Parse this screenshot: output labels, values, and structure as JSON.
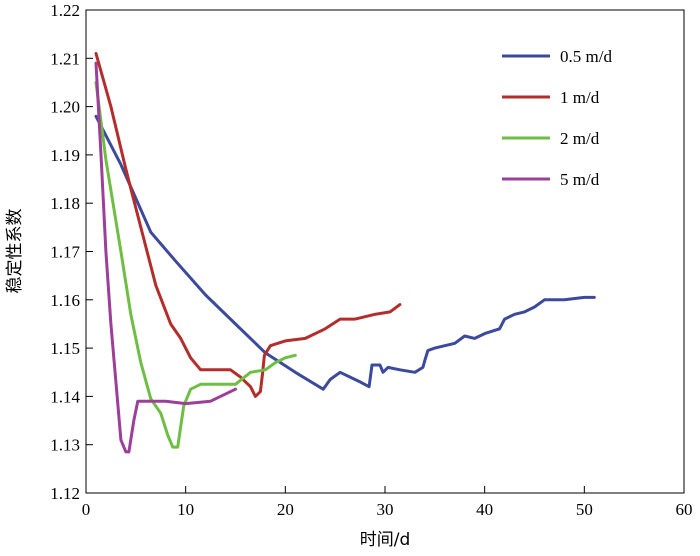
{
  "chart_data": {
    "type": "line",
    "title": "",
    "xlabel": "时间/d",
    "ylabel": "稳定性系数",
    "xlim": [
      0,
      60
    ],
    "ylim": [
      1.12,
      1.22
    ],
    "xticks": [
      0,
      10,
      20,
      30,
      40,
      50,
      60
    ],
    "yticks": [
      1.12,
      1.13,
      1.14,
      1.15,
      1.16,
      1.17,
      1.18,
      1.19,
      1.2,
      1.21,
      1.22
    ],
    "x_tick_labels": [
      "0",
      "10",
      "20",
      "30",
      "40",
      "50",
      "60"
    ],
    "y_tick_labels": [
      "1.12",
      "1.13",
      "1.14",
      "1.15",
      "1.16",
      "1.17",
      "1.18",
      "1.19",
      "1.20",
      "1.21",
      "1.22"
    ],
    "grid": false,
    "legend_position": "top-right",
    "series": [
      {
        "name": "0.5 m/d",
        "color": "#3b4a9c",
        "x": [
          1.0,
          3.5,
          6.5,
          9.0,
          12.0,
          15.0,
          18.0,
          21.0,
          23.8,
          24.5,
          25.5,
          26.5,
          27.5,
          28.4,
          28.7,
          29.2,
          29.5,
          29.8,
          30.3,
          31.5,
          33.0,
          33.8,
          34.0,
          34.3,
          35.0,
          37.0,
          38.0,
          39.0,
          40.0,
          41.5,
          42.0,
          43.0,
          44.0,
          45.0,
          46.0,
          48.0,
          50.0,
          51.0
        ],
        "y": [
          1.198,
          1.188,
          1.174,
          1.168,
          1.161,
          1.155,
          1.149,
          1.145,
          1.1415,
          1.1435,
          1.145,
          1.144,
          1.143,
          1.142,
          1.1465,
          1.1465,
          1.1465,
          1.145,
          1.146,
          1.1455,
          1.145,
          1.146,
          1.1475,
          1.1495,
          1.15,
          1.151,
          1.1525,
          1.152,
          1.153,
          1.154,
          1.156,
          1.157,
          1.1575,
          1.1585,
          1.16,
          1.16,
          1.1605,
          1.1605
        ]
      },
      {
        "name": "1 m/d",
        "color": "#b32d2a",
        "x": [
          1.0,
          2.5,
          4.0,
          5.5,
          7.0,
          8.5,
          9.5,
          10.5,
          11.5,
          12.5,
          14.5,
          15.5,
          16.5,
          17.0,
          17.5,
          17.7,
          17.9,
          18.5,
          20.0,
          22.0,
          24.0,
          25.5,
          27.0,
          28.0,
          29.0,
          30.5,
          31.5
        ],
        "y": [
          1.211,
          1.2,
          1.187,
          1.175,
          1.163,
          1.155,
          1.152,
          1.148,
          1.1455,
          1.1455,
          1.1455,
          1.144,
          1.142,
          1.14,
          1.141,
          1.1445,
          1.1485,
          1.1505,
          1.1515,
          1.152,
          1.154,
          1.156,
          1.156,
          1.1565,
          1.157,
          1.1575,
          1.159
        ]
      },
      {
        "name": "2 m/d",
        "color": "#6fbe44",
        "x": [
          1.0,
          2.0,
          3.5,
          4.5,
          5.5,
          6.5,
          7.5,
          8.2,
          8.7,
          9.2,
          9.8,
          10.5,
          11.5,
          14.0,
          15.0,
          16.5,
          18.0,
          19.0,
          20.0,
          21.0
        ],
        "y": [
          1.205,
          1.189,
          1.17,
          1.157,
          1.147,
          1.1395,
          1.1365,
          1.132,
          1.1295,
          1.1295,
          1.138,
          1.1415,
          1.1425,
          1.1425,
          1.1425,
          1.145,
          1.1455,
          1.147,
          1.148,
          1.1485
        ]
      },
      {
        "name": "5 m/d",
        "color": "#9b3f99",
        "x": [
          1.0,
          1.5,
          2.0,
          2.5,
          3.0,
          3.5,
          4.0,
          4.3,
          4.8,
          5.2,
          6.0,
          8.0,
          10.0,
          12.5,
          15.0
        ],
        "y": [
          1.209,
          1.19,
          1.17,
          1.155,
          1.143,
          1.131,
          1.1285,
          1.1285,
          1.135,
          1.139,
          1.139,
          1.139,
          1.1385,
          1.139,
          1.1415
        ]
      }
    ]
  }
}
